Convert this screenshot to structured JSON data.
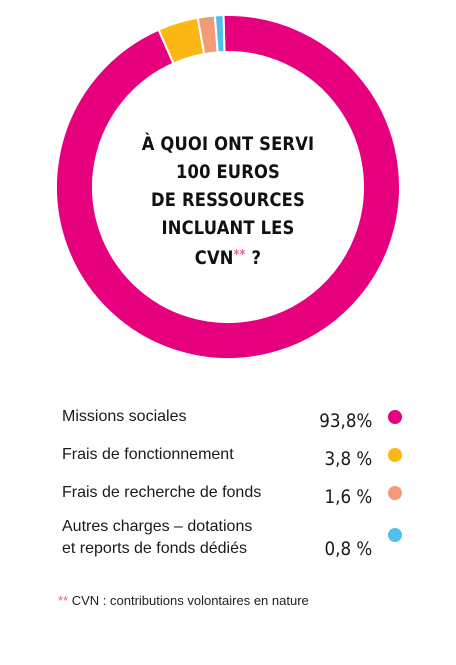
{
  "chart_data": {
    "type": "pie",
    "title_lines": [
      "À QUOI ONT SERVI",
      "100 EUROS",
      "DE RESSOURCES",
      "INCLUANT LES CVN"
    ],
    "title_marker": "**",
    "title_end": " ?",
    "categories": [
      "Missions sociales",
      "Frais de fonctionnement",
      "Frais de recherche de fonds",
      "Autres charges – dotations et reports de fonds dédiés"
    ],
    "labels": [
      [
        "Missions sociales"
      ],
      [
        "Frais de fonctionnement"
      ],
      [
        "Frais de recherche de fonds"
      ],
      [
        "Autres charges – dotations",
        "et reports de fonds dédiés"
      ]
    ],
    "values": [
      93.8,
      3.8,
      1.6,
      0.8
    ],
    "value_labels": [
      "93,8%",
      "3,8 %",
      "1,6 %",
      "0,8 %"
    ],
    "colors": [
      "#e6007e",
      "#fbb713",
      "#f39a77",
      "#4fc0ec"
    ]
  },
  "footnote": {
    "marker": "**",
    "text": " CVN : contributions volontaires en nature"
  }
}
